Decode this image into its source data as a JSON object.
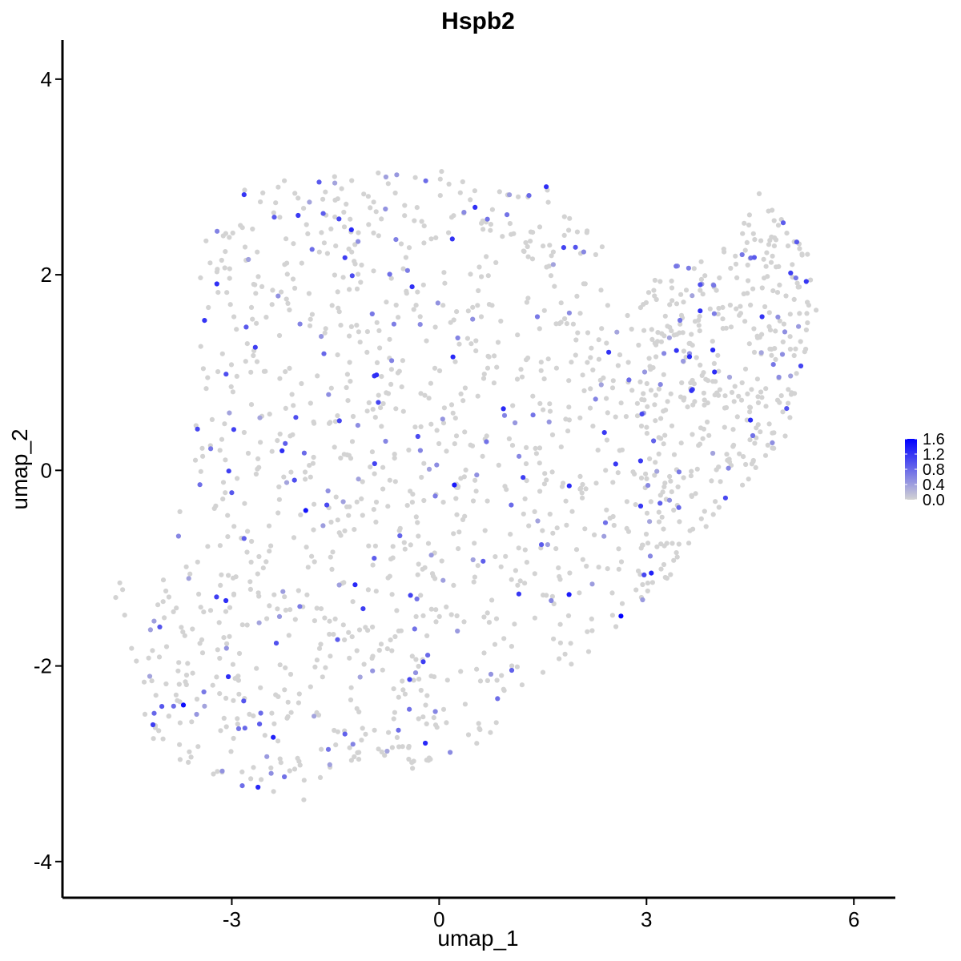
{
  "chart_data": {
    "type": "scatter",
    "title": "Hspb2",
    "xlabel": "umap_1",
    "ylabel": "umap_2",
    "xlim": [
      -5.45,
      6.6
    ],
    "ylim": [
      -4.37,
      4.4
    ],
    "xticks": [
      -3,
      0,
      3,
      6
    ],
    "xtick_labels": [
      "-3",
      "0",
      "3",
      "6"
    ],
    "yticks": [
      -4,
      -2,
      0,
      2,
      4
    ],
    "ytick_labels": [
      "-4",
      "-2",
      "0",
      "2",
      "4"
    ],
    "grid": false,
    "colors": {
      "low": "#d3d3d3",
      "high": "#0000ff"
    },
    "legend": {
      "position": "right",
      "max": 1.6,
      "breaks": [
        1.6,
        1.2,
        0.8,
        0.4,
        0.0
      ],
      "labels": [
        "1.6",
        "1.2",
        "0.8",
        "0.4",
        "0.0"
      ]
    },
    "cluster_left": [
      [
        -3.45,
        2.3
      ],
      [
        -3.2,
        2.6
      ],
      [
        -2.9,
        2.85
      ],
      [
        -2.5,
        2.95
      ],
      [
        -1.9,
        3.0
      ],
      [
        -1.2,
        3.05
      ],
      [
        -0.6,
        3.1
      ],
      [
        0.0,
        3.1
      ],
      [
        0.6,
        2.95
      ],
      [
        1.2,
        2.8
      ],
      [
        1.75,
        2.9
      ],
      [
        2.05,
        2.5
      ],
      [
        2.45,
        2.3
      ],
      [
        2.3,
        1.9
      ],
      [
        2.6,
        1.6
      ],
      [
        2.8,
        1.0
      ],
      [
        2.7,
        0.4
      ],
      [
        2.75,
        -0.2
      ],
      [
        2.9,
        -0.8
      ],
      [
        3.0,
        -1.25
      ],
      [
        2.6,
        -1.6
      ],
      [
        2.0,
        -1.95
      ],
      [
        1.1,
        -2.3
      ],
      [
        0.9,
        -2.8
      ],
      [
        0.3,
        -3.0
      ],
      [
        -0.4,
        -3.05
      ],
      [
        -1.0,
        -3.0
      ],
      [
        -1.5,
        -3.05
      ],
      [
        -1.8,
        -3.35
      ],
      [
        -2.2,
        -3.45
      ],
      [
        -2.8,
        -3.25
      ],
      [
        -3.4,
        -3.1
      ],
      [
        -4.1,
        -2.95
      ],
      [
        -4.4,
        -2.5
      ],
      [
        -4.3,
        -1.95
      ],
      [
        -4.15,
        -1.4
      ],
      [
        -3.95,
        -1.0
      ],
      [
        -3.8,
        -0.5
      ],
      [
        -3.6,
        -0.05
      ],
      [
        -3.55,
        0.5
      ],
      [
        -3.45,
        1.0
      ],
      [
        -3.5,
        1.7
      ]
    ],
    "cluster_right": [
      [
        2.7,
        1.6
      ],
      [
        3.2,
        2.05
      ],
      [
        3.9,
        2.2
      ],
      [
        4.3,
        2.45
      ],
      [
        4.6,
        2.85
      ],
      [
        5.1,
        2.5
      ],
      [
        5.45,
        2.15
      ],
      [
        5.5,
        1.7
      ],
      [
        5.3,
        1.2
      ],
      [
        5.15,
        0.75
      ],
      [
        5.0,
        0.3
      ],
      [
        4.7,
        0.0
      ],
      [
        4.3,
        -0.2
      ],
      [
        3.95,
        -0.5
      ],
      [
        3.55,
        -0.85
      ],
      [
        3.35,
        -1.15
      ],
      [
        3.1,
        -1.45
      ],
      [
        2.9,
        -1.35
      ],
      [
        2.85,
        -0.8
      ],
      [
        2.8,
        -0.2
      ],
      [
        2.75,
        0.4
      ],
      [
        2.8,
        1.0
      ]
    ],
    "outlier_points": [
      [
        -4.68,
        -1.3
      ],
      [
        -4.62,
        -1.15
      ],
      [
        -4.58,
        -1.22
      ],
      [
        -4.55,
        -1.48
      ],
      [
        -4.45,
        -1.82
      ],
      [
        -4.38,
        -1.95
      ]
    ],
    "n_points": 1620,
    "expressing_fraction": 0.16,
    "notable_points": [
      [
        2.63,
        -1.49,
        1.6
      ],
      [
        -3.7,
        -2.4,
        1.5
      ],
      [
        -1.93,
        -0.41,
        1.45
      ],
      [
        0.22,
        -0.15,
        1.4
      ],
      [
        1.88,
        -1.27,
        1.4
      ],
      [
        3.07,
        -1.05,
        1.35
      ],
      [
        -1.27,
        2.46,
        1.3
      ],
      [
        -2.4,
        -2.73,
        1.35
      ],
      [
        3.96,
        1.23,
        1.3
      ],
      [
        0.2,
        1.16,
        1.3
      ],
      [
        0.93,
        0.63,
        1.3
      ],
      [
        -0.2,
        -2.79,
        1.3
      ],
      [
        1.55,
        2.9,
        1.25
      ],
      [
        -3.05,
        -2.11,
        1.25
      ],
      [
        -2.62,
        -3.24,
        1.3
      ]
    ]
  }
}
